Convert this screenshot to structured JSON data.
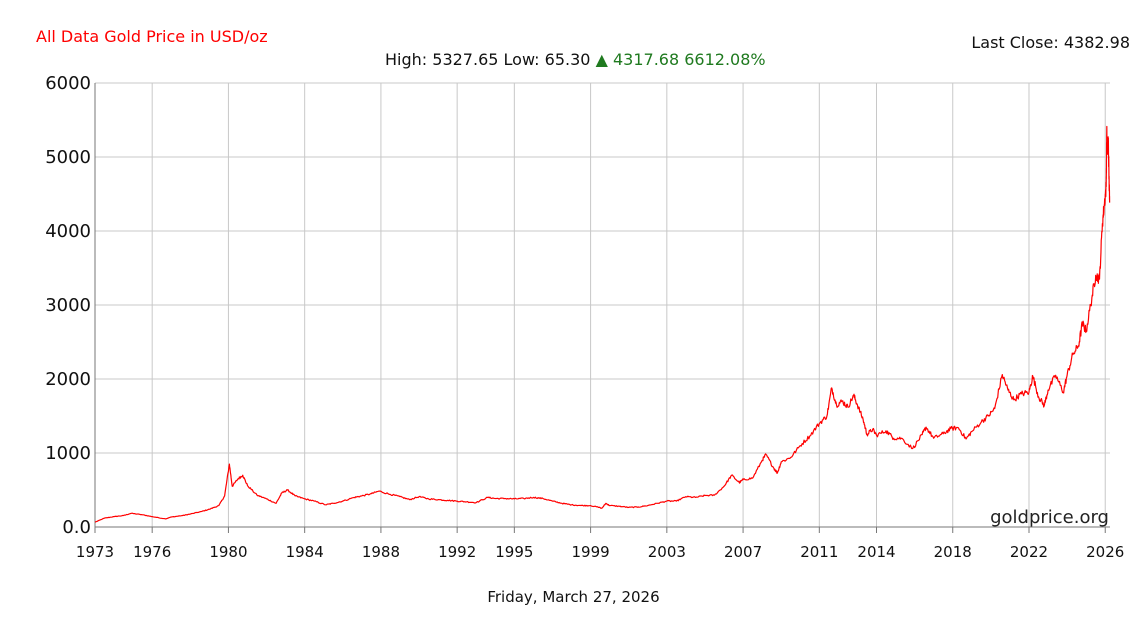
{
  "header": {
    "title": "All Data Gold Price in USD/oz",
    "high_label": "High:",
    "high_value": "5327.65",
    "low_label": "Low:",
    "low_value": "65.30",
    "change_arrow": "▲",
    "change_value": "4317.68",
    "change_percent": "6612.08%",
    "last_close_label": "Last Close:",
    "last_close_value": "4382.98"
  },
  "footer": {
    "date": "Friday, March 27, 2026",
    "watermark": "goldprice.org"
  },
  "colors": {
    "line": "#ff0000",
    "title": "#ff0000",
    "change": "#1f7a1f",
    "grid": "#c8c8c8"
  },
  "chart_data": {
    "type": "line",
    "title": "All Data Gold Price in USD/oz",
    "xlabel": "",
    "ylabel": "",
    "ylim": [
      0,
      6000
    ],
    "xlim": [
      1973.0,
      2026.25
    ],
    "y_ticks": [
      "0.0",
      "1000",
      "2000",
      "3000",
      "4000",
      "5000",
      "6000"
    ],
    "x_ticks": [
      "1973",
      "1976",
      "1980",
      "1984",
      "1988",
      "1992",
      "1995",
      "1999",
      "2003",
      "2007",
      "2011",
      "2014",
      "2018",
      "2022",
      "2026"
    ],
    "grid": true,
    "series": [
      {
        "values": [
          [
            1973.0,
            65
          ],
          [
            1973.5,
            120
          ],
          [
            1974.0,
            140
          ],
          [
            1974.5,
            155
          ],
          [
            1974.9,
            185
          ],
          [
            1975.5,
            165
          ],
          [
            1976.0,
            140
          ],
          [
            1976.7,
            110
          ],
          [
            1977.0,
            135
          ],
          [
            1977.6,
            155
          ],
          [
            1978.0,
            175
          ],
          [
            1978.6,
            210
          ],
          [
            1979.0,
            240
          ],
          [
            1979.5,
            290
          ],
          [
            1979.8,
            420
          ],
          [
            1980.05,
            850
          ],
          [
            1980.2,
            550
          ],
          [
            1980.5,
            650
          ],
          [
            1980.75,
            700
          ],
          [
            1981.0,
            560
          ],
          [
            1981.5,
            430
          ],
          [
            1982.0,
            380
          ],
          [
            1982.5,
            320
          ],
          [
            1982.8,
            460
          ],
          [
            1983.1,
            500
          ],
          [
            1983.5,
            420
          ],
          [
            1984.0,
            380
          ],
          [
            1984.5,
            350
          ],
          [
            1985.1,
            300
          ],
          [
            1985.5,
            320
          ],
          [
            1986.0,
            350
          ],
          [
            1986.6,
            400
          ],
          [
            1987.0,
            420
          ],
          [
            1987.5,
            450
          ],
          [
            1987.9,
            485
          ],
          [
            1988.5,
            440
          ],
          [
            1989.0,
            410
          ],
          [
            1989.5,
            370
          ],
          [
            1990.0,
            410
          ],
          [
            1990.5,
            380
          ],
          [
            1991.0,
            370
          ],
          [
            1991.5,
            360
          ],
          [
            1992.0,
            350
          ],
          [
            1992.5,
            340
          ],
          [
            1993.0,
            330
          ],
          [
            1993.6,
            400
          ],
          [
            1994.0,
            385
          ],
          [
            1994.5,
            385
          ],
          [
            1995.0,
            380
          ],
          [
            1995.5,
            385
          ],
          [
            1996.0,
            400
          ],
          [
            1996.5,
            385
          ],
          [
            1997.0,
            350
          ],
          [
            1997.5,
            320
          ],
          [
            1998.0,
            300
          ],
          [
            1998.5,
            290
          ],
          [
            1999.0,
            290
          ],
          [
            1999.6,
            255
          ],
          [
            1999.8,
            320
          ],
          [
            2000.0,
            290
          ],
          [
            2000.5,
            280
          ],
          [
            2001.0,
            265
          ],
          [
            2001.5,
            270
          ],
          [
            2002.0,
            290
          ],
          [
            2002.5,
            320
          ],
          [
            2003.0,
            350
          ],
          [
            2003.5,
            350
          ],
          [
            2004.0,
            410
          ],
          [
            2004.5,
            400
          ],
          [
            2005.0,
            425
          ],
          [
            2005.5,
            430
          ],
          [
            2006.0,
            550
          ],
          [
            2006.4,
            700
          ],
          [
            2006.8,
            600
          ],
          [
            2007.0,
            640
          ],
          [
            2007.5,
            660
          ],
          [
            2008.0,
            900
          ],
          [
            2008.2,
            980
          ],
          [
            2008.6,
            800
          ],
          [
            2008.8,
            730
          ],
          [
            2009.0,
            880
          ],
          [
            2009.5,
            940
          ],
          [
            2010.0,
            1100
          ],
          [
            2010.5,
            1230
          ],
          [
            2011.0,
            1400
          ],
          [
            2011.4,
            1500
          ],
          [
            2011.65,
            1880
          ],
          [
            2011.9,
            1650
          ],
          [
            2012.2,
            1700
          ],
          [
            2012.5,
            1620
          ],
          [
            2012.8,
            1780
          ],
          [
            2013.0,
            1650
          ],
          [
            2013.3,
            1450
          ],
          [
            2013.5,
            1250
          ],
          [
            2013.8,
            1320
          ],
          [
            2014.0,
            1240
          ],
          [
            2014.5,
            1300
          ],
          [
            2014.9,
            1200
          ],
          [
            2015.3,
            1200
          ],
          [
            2015.9,
            1060
          ],
          [
            2016.4,
            1250
          ],
          [
            2016.6,
            1350
          ],
          [
            2017.0,
            1200
          ],
          [
            2017.5,
            1260
          ],
          [
            2017.9,
            1330
          ],
          [
            2018.3,
            1340
          ],
          [
            2018.7,
            1190
          ],
          [
            2019.0,
            1290
          ],
          [
            2019.5,
            1420
          ],
          [
            2019.9,
            1510
          ],
          [
            2020.2,
            1600
          ],
          [
            2020.6,
            2060
          ],
          [
            2020.9,
            1850
          ],
          [
            2021.2,
            1720
          ],
          [
            2021.6,
            1800
          ],
          [
            2022.0,
            1820
          ],
          [
            2022.2,
            2040
          ],
          [
            2022.5,
            1760
          ],
          [
            2022.8,
            1640
          ],
          [
            2023.0,
            1850
          ],
          [
            2023.4,
            2050
          ],
          [
            2023.8,
            1820
          ],
          [
            2024.0,
            2050
          ],
          [
            2024.3,
            2330
          ],
          [
            2024.6,
            2450
          ],
          [
            2024.8,
            2750
          ],
          [
            2025.0,
            2650
          ],
          [
            2025.3,
            3100
          ],
          [
            2025.5,
            3400
          ],
          [
            2025.7,
            3350
          ],
          [
            2025.85,
            4100
          ],
          [
            2025.95,
            4350
          ],
          [
            2026.05,
            4600
          ],
          [
            2026.08,
            5327.65
          ],
          [
            2026.12,
            5050
          ],
          [
            2026.16,
            5250
          ],
          [
            2026.2,
            4700
          ],
          [
            2026.23,
            4382.98
          ]
        ]
      }
    ]
  }
}
